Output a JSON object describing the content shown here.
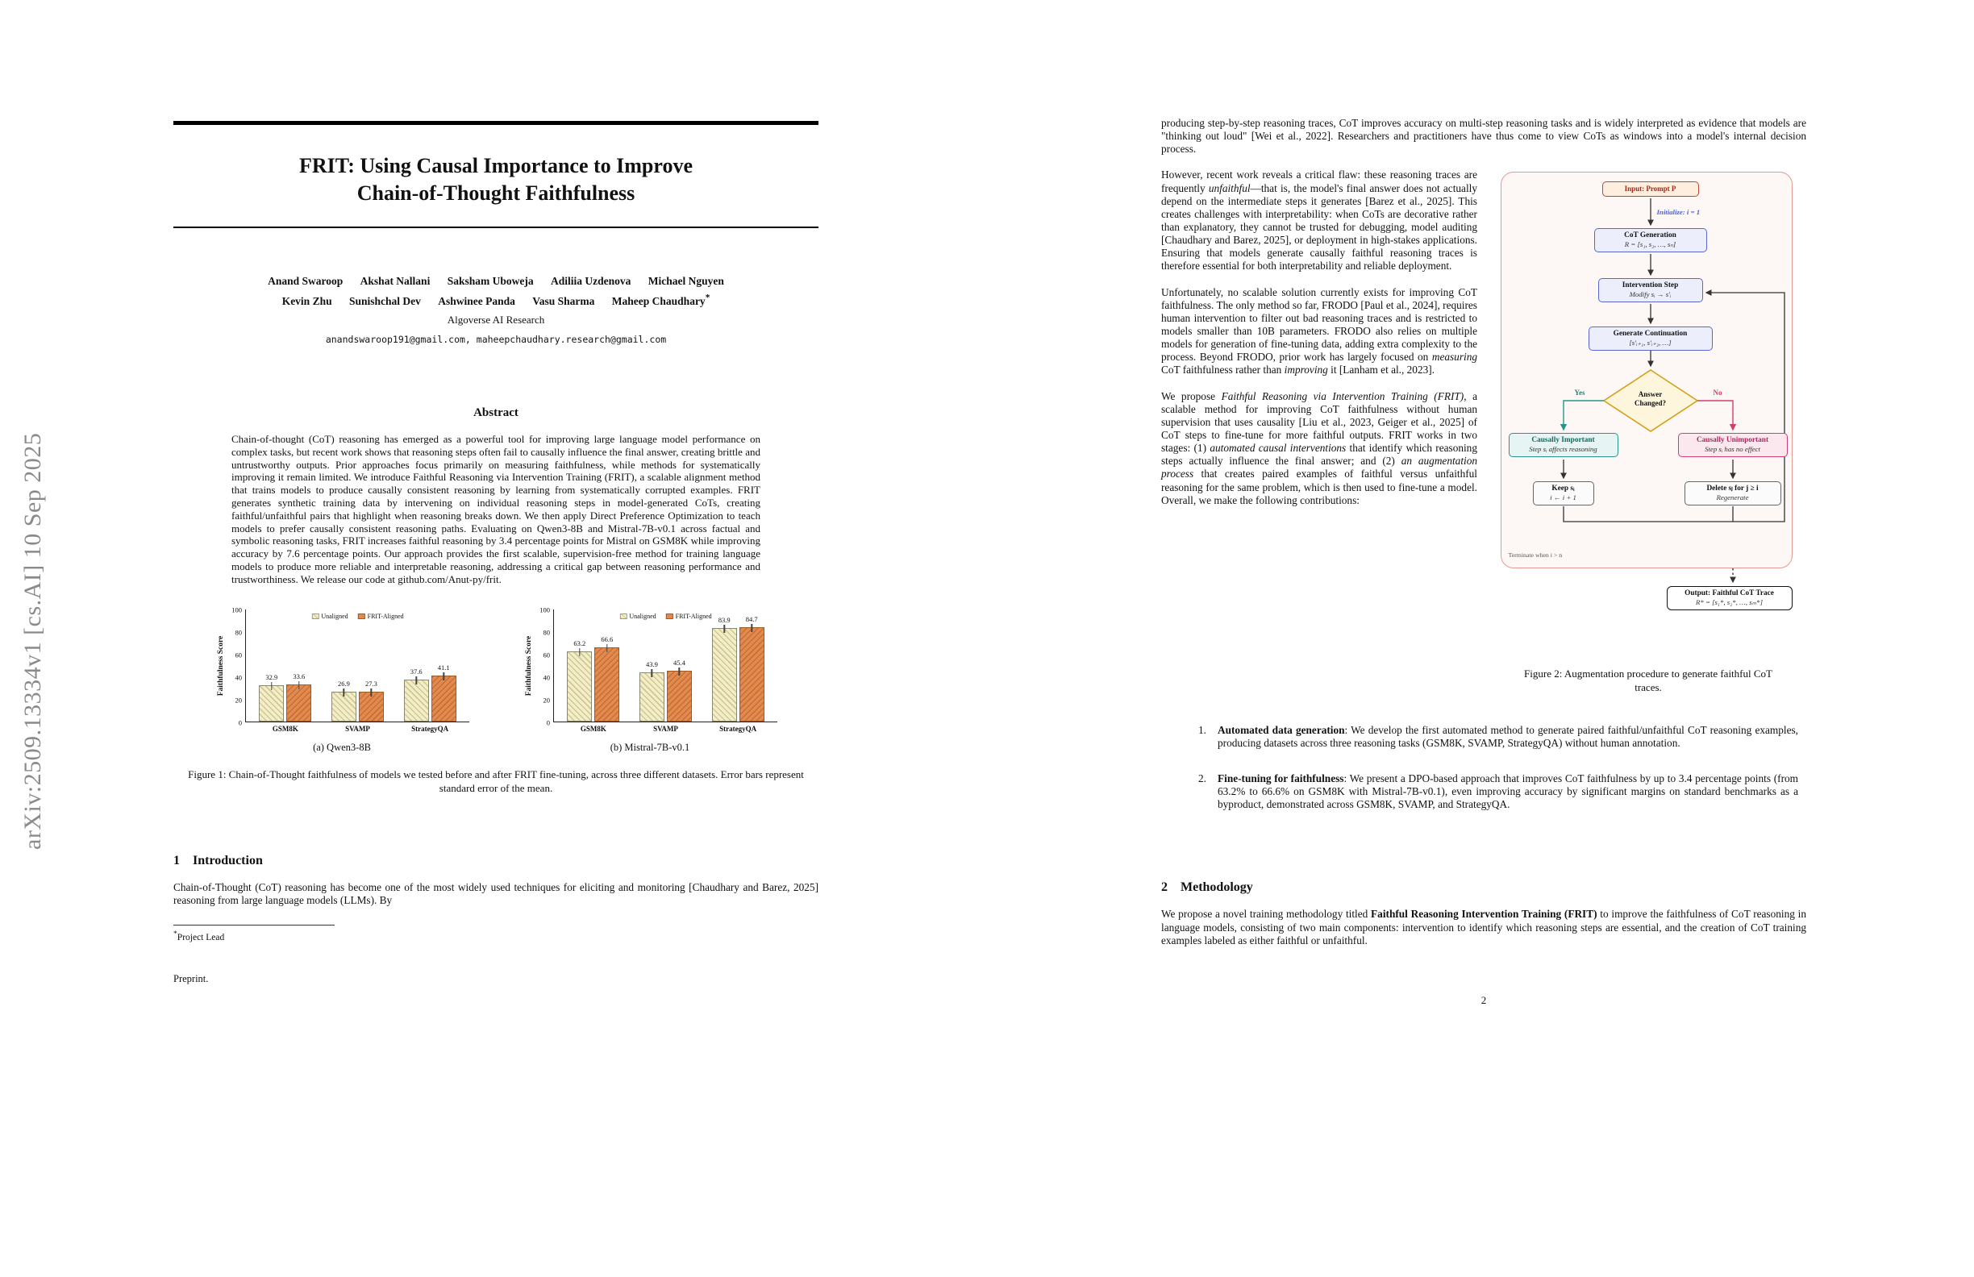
{
  "watermark": "arXiv:2509.13334v1  [cs.AI]  10 Sep 2025",
  "page_number": "2",
  "left_page": {
    "title_line1": "FRIT: Using Causal Importance to Improve",
    "title_line2": "Chain-of-Thought Faithfulness",
    "authors_row1": [
      "Anand Swaroop",
      "Akshat Nallani",
      "Saksham Uboweja",
      "Adiliia Uzdenova",
      "Michael Nguyen"
    ],
    "authors_row2": [
      "Kevin Zhu",
      "Sunishchal Dev",
      "Ashwinee Panda",
      "Vasu Sharma",
      "Maheep Chaudhary"
    ],
    "project_lead_marker": "*",
    "affiliation": "Algoverse AI Research",
    "emails": "anandswaroop191@gmail.com, maheepchaudhary.research@gmail.com",
    "abstract_heading": "Abstract",
    "abstract_text": "Chain-of-thought (CoT) reasoning has emerged as a powerful tool for improving large language model performance on complex tasks, but recent work shows that reasoning steps often fail to causally influence the final answer, creating brittle and untrustworthy outputs. Prior approaches focus primarily on measuring faithfulness, while methods for systematically improving it remain limited. We introduce Faithful Reasoning via Intervention Training (FRIT), a scalable alignment method that trains models to produce causally consistent reasoning by learning from systematically corrupted examples. FRIT generates synthetic training data by intervening on individual reasoning steps in model-generated CoTs, creating faithful/unfaithful pairs that highlight when reasoning breaks down. We then apply Direct Preference Optimization to teach models to prefer causally consistent reasoning paths. Evaluating on Qwen3-8B and Mistral-7B-v0.1 across factual and symbolic reasoning tasks, FRIT increases faithful reasoning by 3.4 percentage points for Mistral on GSM8K while improving accuracy by 7.6 percentage points. Our approach provides the first scalable, supervision-free method for training language models to produce more reliable and interpretable reasoning, addressing a critical gap between reasoning performance and trustworthiness. We release our code at github.com/Anut-py/frit.",
    "figure1": {
      "subcaption_a": "(a) Qwen3-8B",
      "subcaption_b": "(b) Mistral-7B-v0.1",
      "caption": "Figure 1: Chain-of-Thought faithfulness of models we tested before and after FRIT fine-tuning, across three different datasets. Error bars represent standard error of the mean."
    },
    "intro_number": "1",
    "intro_heading": "Introduction",
    "intro_p1": "Chain-of-Thought (CoT) reasoning has become one of the most widely used techniques for eliciting and monitoring [Chaudhary and Barez, 2025] reasoning from large language models (LLMs). By",
    "footnote_marker": "*",
    "footnote_text": "Project Lead",
    "preprint": "Preprint."
  },
  "right_page": {
    "p_top": "producing step-by-step reasoning traces, CoT improves accuracy on multi-step reasoning tasks and is widely interpreted as evidence that models are \"thinking out loud\" [Wei et al., 2022]. Researchers and practitioners have thus come to view CoTs as windows into a model's internal decision process.",
    "p_flaw": {
      "a": "However, recent work reveals a critical flaw: these reasoning traces are frequently ",
      "b": "unfaithful",
      "c": "—that is, the model's final answer does not actually depend on the intermediate steps it generates [Barez et al., 2025]. This creates challenges with interpretability: when CoTs are decorative rather than explanatory, they cannot be trusted for debugging, model auditing [Chaudhary and Barez, 2025], or deployment in high-stakes applications. Ensuring that models generate causally faithful reasoning traces is therefore essential for both interpretability and reliable deployment."
    },
    "p_frodo": {
      "a": "Unfortunately, no scalable solution currently exists for improving CoT faithfulness. The only method so far, FRODO [Paul et al., 2024], requires human intervention to filter out bad reasoning traces and is restricted to models smaller than 10B parameters. FRODO also relies on multiple models for generation of fine-tuning data, adding extra complexity to the process. Beyond FRODO, prior work has largely focused on ",
      "b": "measuring",
      "c": " CoT faithfulness rather than ",
      "d": "improving",
      "e": " it [Lanham et al., 2023]."
    },
    "p_frit": {
      "a": "We propose ",
      "b": "Faithful Reasoning via Intervention Training (FRIT)",
      "c": ", a scalable method for improving CoT faithfulness without human supervision that uses causality [Liu et al., 2023, Geiger et al., 2025] of CoT steps to fine-tune for more faithful outputs. FRIT works in two stages: (1) ",
      "d": "automated causal interventions",
      "e": " that identify which reasoning steps actually influence the final answer; and (2) ",
      "f": "an augmentation process",
      "g": " that creates paired examples of faithful versus unfaithful reasoning for the same problem, which is then used to fine-tune a model. Overall, we make the following contributions:"
    },
    "figure2_caption": "Figure 2: Augmentation procedure to generate faithful CoT traces.",
    "contributions": [
      {
        "num": "1.",
        "lead": "Automated data generation",
        "text": ": We develop the first automated method to generate paired faithful/unfaithful CoT reasoning examples, producing datasets across three reasoning tasks (GSM8K, SVAMP, StrategyQA) without human annotation."
      },
      {
        "num": "2.",
        "lead": "Fine-tuning for faithfulness",
        "text": ": We present a DPO-based approach that improves CoT faithfulness by up to 3.4 percentage points (from 63.2% to 66.6% on GSM8K with Mistral-7B-v0.1), even improving accuracy by significant margins on standard benchmarks as a byproduct, demonstrated across GSM8K, SVAMP, and StrategyQA."
      }
    ],
    "method_number": "2",
    "method_heading": "Methodology",
    "method_p": {
      "a": "We propose a novel training methodology titled ",
      "b": "Faithful Reasoning Intervention Training (FRIT)",
      "c": " to improve the faithfulness of CoT reasoning in language models, consisting of two main components: intervention to identify which reasoning steps are essential, and the creation of CoT training examples labeled as either faithful or unfaithful."
    }
  },
  "chart_data": [
    {
      "type": "bar",
      "title": "(a) Qwen3-8B",
      "categories": [
        "GSM8K",
        "SVAMP",
        "StrategyQA"
      ],
      "series": [
        {
          "name": "Unaligned",
          "color": "#f3eec8",
          "values": [
            32.9,
            26.9,
            37.6
          ]
        },
        {
          "name": "FRIT-Aligned",
          "color": "#e18a52",
          "values": [
            33.6,
            27.3,
            41.1
          ]
        }
      ],
      "xlabel": "",
      "ylabel": "Faithfulness Score",
      "ylim": [
        0,
        100
      ],
      "yticks": [
        0,
        20,
        40,
        60,
        80,
        100
      ],
      "grid": false,
      "legend_position": "top-center",
      "error_bars": true
    },
    {
      "type": "bar",
      "title": "(b) Mistral-7B-v0.1",
      "categories": [
        "GSM8K",
        "SVAMP",
        "StrategyQA"
      ],
      "series": [
        {
          "name": "Unaligned",
          "color": "#f3eec8",
          "values": [
            63.2,
            43.9,
            83.9
          ]
        },
        {
          "name": "FRIT-Aligned",
          "color": "#e18a52",
          "values": [
            66.6,
            45.4,
            84.7
          ]
        }
      ],
      "xlabel": "",
      "ylabel": "Faithfulness Score",
      "ylim": [
        0,
        100
      ],
      "yticks": [
        0,
        20,
        40,
        60,
        80,
        100
      ],
      "grid": false,
      "legend_position": "top-center",
      "error_bars": true
    }
  ],
  "flowchart": {
    "input": "Input: Prompt P",
    "init": "Initialize: i = 1",
    "cot_title": "CoT Generation",
    "cot_math": "R = [s₁, s₂, …, sₙ]",
    "intervention_title": "Intervention Step",
    "intervention_math": "Modify sᵢ → s′ᵢ",
    "continuation_title": "Generate Continuation",
    "continuation_math": "[s′ᵢ₊₁, s′ᵢ₊₂, …]",
    "decision_line1": "Answer",
    "decision_line2": "Changed?",
    "yes": "Yes",
    "no": "No",
    "important_title": "Causally Important",
    "important_sub": "Step sᵢ affects reasoning",
    "unimportant_title": "Causally Unimportant",
    "unimportant_sub": "Step sᵢ has no effect",
    "keep_line1": "Keep sᵢ",
    "keep_line2": "i ← i + 1",
    "delete_line1": "Delete sⱼ for j ≥ i",
    "delete_line2": "Regenerate",
    "terminate": "Terminate when i > n",
    "output_title": "Output: Faithful CoT Trace",
    "output_math": "R* = [s₁*, s₂*, …, sₘ*]",
    "colors": {
      "loop_border": "#e59a93",
      "blue": "#5a66cf",
      "teal": "#27958a",
      "pink": "#d23d71",
      "gold": "#d4a017",
      "input_red": "#c2452f"
    }
  }
}
